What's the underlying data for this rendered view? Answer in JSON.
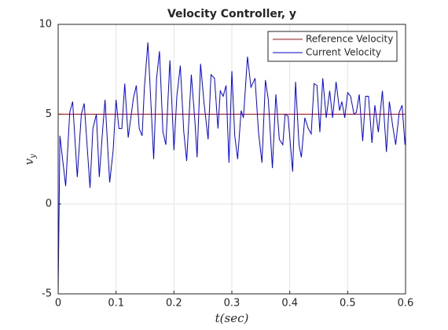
{
  "chart_data": {
    "type": "line",
    "title": "Velocity Controller, y",
    "xlabel": "t(sec)",
    "ylabel": {
      "base": "v",
      "sub": "y"
    },
    "xlim": [
      0,
      0.6
    ],
    "ylim": [
      -5,
      10
    ],
    "xticks": [
      0,
      0.1,
      0.2,
      0.3,
      0.4,
      0.5,
      0.6
    ],
    "yticks": [
      -5,
      0,
      5,
      10
    ],
    "grid": true,
    "legend": "top-right",
    "series": [
      {
        "name": "Reference Velocity",
        "color": "#cc0000",
        "x": [
          0,
          0.6
        ],
        "values": [
          5,
          5
        ]
      },
      {
        "name": "Current Velocity",
        "color": "#0000ff",
        "x": [
          0,
          0.003,
          0.013,
          0.02,
          0.025,
          0.033,
          0.04,
          0.045,
          0.055,
          0.06,
          0.066,
          0.071,
          0.077,
          0.081,
          0.089,
          0.095,
          0.1,
          0.105,
          0.11,
          0.115,
          0.121,
          0.13,
          0.135,
          0.14,
          0.145,
          0.149,
          0.155,
          0.165,
          0.17,
          0.175,
          0.181,
          0.186,
          0.193,
          0.2,
          0.205,
          0.211,
          0.217,
          0.222,
          0.23,
          0.236,
          0.24,
          0.246,
          0.252,
          0.259,
          0.264,
          0.27,
          0.276,
          0.28,
          0.285,
          0.29,
          0.295,
          0.3,
          0.305,
          0.31,
          0.316,
          0.32,
          0.327,
          0.333,
          0.34,
          0.346,
          0.352,
          0.358,
          0.363,
          0.37,
          0.376,
          0.382,
          0.388,
          0.392,
          0.397,
          0.405,
          0.41,
          0.416,
          0.42,
          0.426,
          0.432,
          0.437,
          0.442,
          0.447,
          0.452,
          0.457,
          0.463,
          0.469,
          0.474,
          0.48,
          0.486,
          0.49,
          0.495,
          0.5,
          0.505,
          0.511,
          0.515,
          0.52,
          0.526,
          0.531,
          0.536,
          0.542,
          0.547,
          0.553,
          0.56,
          0.567,
          0.572,
          0.578,
          0.583,
          0.589,
          0.594,
          0.599,
          0.6
        ],
        "values": [
          -5,
          3.8,
          1.0,
          5.1,
          5.7,
          1.5,
          5.0,
          5.6,
          0.9,
          4.2,
          5.0,
          1.5,
          4.2,
          5.8,
          1.2,
          3.0,
          5.8,
          4.2,
          4.2,
          6.7,
          3.7,
          5.9,
          6.6,
          4.2,
          3.8,
          6.5,
          9.0,
          2.5,
          7.0,
          8.5,
          4.0,
          3.3,
          8.0,
          3.0,
          6.0,
          7.7,
          4.0,
          2.4,
          7.2,
          4.7,
          2.6,
          7.8,
          5.6,
          3.6,
          7.2,
          7.0,
          4.2,
          6.3,
          6.0,
          6.6,
          2.3,
          7.4,
          3.8,
          2.5,
          5.2,
          4.8,
          8.2,
          6.5,
          7.0,
          4.0,
          2.3,
          6.9,
          5.8,
          2.0,
          6.1,
          3.6,
          3.3,
          5.0,
          4.9,
          1.8,
          6.8,
          3.3,
          2.6,
          4.8,
          4.2,
          3.9,
          6.7,
          6.6,
          4.0,
          7.0,
          4.8,
          6.3,
          4.8,
          6.8,
          5.2,
          5.7,
          4.8,
          6.2,
          6.0,
          5.0,
          5.1,
          6.1,
          3.5,
          6.0,
          6.0,
          3.4,
          5.5,
          4.0,
          6.3,
          2.9,
          5.7,
          4.3,
          3.3,
          5.1,
          5.5,
          3.3,
          3.8
        ]
      }
    ]
  }
}
